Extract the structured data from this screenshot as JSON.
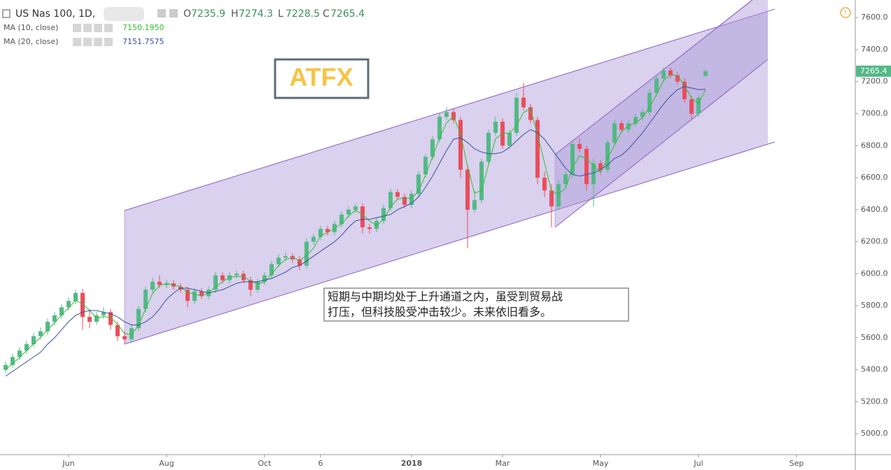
{
  "chart_data": {
    "type": "candlestick",
    "symbol": "US Nas 100, 1D,",
    "ohlc_letters": [
      "O",
      "H",
      "L",
      "C"
    ],
    "watermark": "ATFX",
    "annotation": [
      "短期与中期均处于上升通道之内，虽受到贸易战",
      "打压，但科技股受冲击较少。未来依旧看多。"
    ],
    "categories": [
      null,
      null,
      null,
      null,
      null,
      null,
      null,
      null,
      null,
      "Jun",
      null,
      null,
      null,
      null,
      null,
      null,
      null,
      null,
      null,
      null,
      null,
      null,
      null,
      "Aug",
      null,
      null,
      null,
      null,
      null,
      null,
      null,
      null,
      null,
      null,
      null,
      null,
      null,
      "Oct",
      null,
      null,
      null,
      null,
      null,
      null,
      null,
      "6",
      null,
      null,
      null,
      null,
      null,
      null,
      null,
      null,
      null,
      null,
      null,
      null,
      "2018",
      null,
      null,
      null,
      null,
      null,
      null,
      null,
      null,
      null,
      null,
      null,
      null,
      "Mar",
      null,
      null,
      null,
      null,
      null,
      null,
      null,
      null,
      null,
      null,
      null,
      null,
      null,
      "May",
      null,
      null,
      null,
      null,
      null,
      null,
      null,
      null,
      null,
      null,
      null,
      null,
      null,
      "Jul",
      null,
      null,
      null,
      null,
      null,
      null,
      null,
      null,
      null,
      null,
      null,
      null,
      null,
      "Sep",
      null,
      null,
      null,
      null,
      null,
      null,
      null,
      null
    ],
    "candles": {
      "up_color": "#53b987",
      "down_color": "#eb4d5c",
      "open": [
        5400,
        5430,
        5480,
        5520,
        5560,
        5610,
        5640,
        5700,
        5740,
        5790,
        5830,
        5880,
        5730,
        5700,
        5740,
        5760,
        5680,
        5610,
        5590,
        5660,
        5780,
        5900,
        5950,
        5930,
        5940,
        5920,
        5900,
        5830,
        5890,
        5860,
        5900,
        5990,
        5960,
        5990,
        6000,
        5960,
        5900,
        5950,
        5990,
        6060,
        6100,
        6110,
        6090,
        6050,
        6200,
        6230,
        6280,
        6260,
        6310,
        6370,
        6400,
        6420,
        6290,
        6280,
        6330,
        6410,
        6510,
        6480,
        6430,
        6500,
        6620,
        6730,
        6840,
        6980,
        7010,
        6960,
        6650,
        6400,
        6460,
        6700,
        6880,
        6950,
        6800,
        6880,
        7100,
        7040,
        6960,
        6600,
        6520,
        6420,
        6560,
        6620,
        6810,
        6780,
        6560,
        6690,
        6650,
        6820,
        6940,
        6900,
        6940,
        6980,
        7010,
        7130,
        7220,
        7270,
        7240,
        7200,
        7090,
        7000,
        7235.9,
        null,
        null,
        null,
        null,
        null,
        null,
        null,
        null,
        null,
        null,
        null,
        null,
        null,
        null,
        null,
        null,
        null,
        null,
        null,
        null,
        null
      ],
      "high": [
        5450,
        5500,
        5540,
        5580,
        5630,
        5665,
        5720,
        5760,
        5810,
        5850,
        5900,
        5905,
        5780,
        5760,
        5790,
        5780,
        5700,
        5640,
        5680,
        5800,
        5920,
        5975,
        5990,
        5960,
        5960,
        5940,
        5920,
        5910,
        5910,
        5920,
        6010,
        6010,
        6010,
        6020,
        6020,
        5980,
        5970,
        6010,
        6080,
        6120,
        6130,
        6130,
        6110,
        6220,
        6250,
        6300,
        6300,
        6330,
        6390,
        6420,
        6440,
        6440,
        6310,
        6350,
        6430,
        6530,
        6530,
        6500,
        6520,
        6640,
        6750,
        6860,
        7000,
        7040,
        7030,
        6980,
        6680,
        6520,
        6720,
        6900,
        6980,
        6970,
        6900,
        7130,
        7190,
        7060,
        6980,
        6640,
        6560,
        6590,
        6640,
        6830,
        6850,
        6800,
        6720,
        6710,
        6840,
        6960,
        6960,
        6960,
        7000,
        7030,
        7150,
        7240,
        7290,
        7290,
        7260,
        7220,
        7110,
        7120,
        7274.3,
        null,
        null,
        null,
        null,
        null,
        null,
        null,
        null,
        null,
        null,
        null,
        null,
        null,
        null,
        null,
        null,
        null,
        null,
        null,
        null,
        null
      ],
      "low": [
        5380,
        5410,
        5460,
        5500,
        5540,
        5590,
        5620,
        5680,
        5720,
        5770,
        5810,
        5650,
        5660,
        5680,
        5720,
        5650,
        5580,
        5560,
        5570,
        5640,
        5760,
        5880,
        5910,
        5910,
        5900,
        5880,
        5790,
        5810,
        5840,
        5840,
        5880,
        5940,
        5940,
        5970,
        5940,
        5860,
        5880,
        5930,
        5970,
        6040,
        6080,
        6070,
        6020,
        6030,
        6180,
        6210,
        6240,
        6240,
        6290,
        6350,
        6380,
        6250,
        6250,
        6260,
        6310,
        6390,
        6460,
        6410,
        6410,
        6480,
        6600,
        6710,
        6820,
        6960,
        6940,
        6600,
        6160,
        6380,
        6440,
        6680,
        6860,
        6780,
        6780,
        6860,
        7020,
        6940,
        6560,
        6480,
        6290,
        6400,
        6540,
        6600,
        6760,
        6520,
        6420,
        6620,
        6630,
        6800,
        6880,
        6880,
        6920,
        6960,
        6990,
        7110,
        7200,
        7220,
        7180,
        7070,
        6960,
        6980,
        7228.5,
        null,
        null,
        null,
        null,
        null,
        null,
        null,
        null,
        null,
        null,
        null,
        null,
        null,
        null,
        null,
        null,
        null,
        null,
        null,
        null,
        null
      ],
      "close": [
        5430,
        5480,
        5520,
        5560,
        5610,
        5640,
        5700,
        5740,
        5790,
        5830,
        5880,
        5730,
        5700,
        5740,
        5760,
        5680,
        5610,
        5590,
        5660,
        5780,
        5900,
        5950,
        5930,
        5940,
        5920,
        5900,
        5830,
        5890,
        5860,
        5900,
        5990,
        5960,
        5990,
        6000,
        5960,
        5900,
        5950,
        5990,
        6060,
        6100,
        6110,
        6090,
        6050,
        6200,
        6230,
        6280,
        6260,
        6310,
        6370,
        6400,
        6420,
        6290,
        6280,
        6330,
        6410,
        6510,
        6480,
        6430,
        6500,
        6620,
        6730,
        6840,
        6980,
        7010,
        6960,
        6650,
        6400,
        6460,
        6700,
        6880,
        6950,
        6800,
        6880,
        7100,
        7040,
        6960,
        6600,
        6520,
        6420,
        6560,
        6620,
        6810,
        6780,
        6560,
        6690,
        6650,
        6820,
        6940,
        6900,
        6940,
        6980,
        7010,
        7130,
        7220,
        7270,
        7240,
        7200,
        7090,
        7000,
        7100,
        7265.4,
        null,
        null,
        null,
        null,
        null,
        null,
        null,
        null,
        null,
        null,
        null,
        null,
        null,
        null,
        null,
        null,
        null,
        null,
        null,
        null,
        null
      ]
    },
    "series": [
      {
        "name": "MA (10, close)",
        "color": "#2fbf2f",
        "last_label": "7150.1950",
        "values": [
          5400,
          5440,
          5477,
          5520,
          5563,
          5603,
          5650,
          5693,
          5743,
          5787,
          5833,
          5813,
          5770,
          5723,
          5733,
          5727,
          5683,
          5627,
          5620,
          5677,
          5780,
          5877,
          5927,
          5940,
          5930,
          5920,
          5883,
          5873,
          5860,
          5883,
          5917,
          5950,
          5980,
          5983,
          5983,
          5953,
          5937,
          5947,
          6000,
          6050,
          6090,
          6100,
          6083,
          6113,
          6160,
          6237,
          6257,
          6283,
          6313,
          6360,
          6397,
          6370,
          6330,
          6300,
          6340,
          6417,
          6467,
          6473,
          6470,
          6517,
          6617,
          6730,
          6850,
          6943,
          6983,
          6873,
          6670,
          6503,
          6520,
          6680,
          6843,
          6877,
          6877,
          6927,
          7007,
          7033,
          6867,
          6693,
          6513,
          6500,
          6533,
          6663,
          6737,
          6717,
          6677,
          6633,
          6720,
          6803,
          6887,
          6927,
          6940,
          6977,
          7040,
          7120,
          7207,
          7243,
          7237,
          7177,
          7097,
          7063,
          7150.195,
          null,
          null,
          null,
          null,
          null,
          null,
          null,
          null,
          null,
          null,
          null,
          null,
          null,
          null,
          null,
          null,
          null,
          null,
          null,
          null,
          null
        ]
      },
      {
        "name": "MA (20, close)",
        "color": "#3a4fa0",
        "last_label": "7151.7575",
        "values": [
          5360,
          5390,
          5420,
          5450,
          5480,
          5510,
          5560,
          5600,
          5650,
          5700,
          5740,
          5760,
          5770,
          5770,
          5760,
          5750,
          5730,
          5700,
          5680,
          5680,
          5700,
          5730,
          5780,
          5840,
          5880,
          5910,
          5910,
          5900,
          5890,
          5880,
          5890,
          5900,
          5920,
          5940,
          5950,
          5950,
          5950,
          5960,
          5970,
          5990,
          6010,
          6040,
          6050,
          6080,
          6110,
          6140,
          6170,
          6200,
          6240,
          6290,
          6330,
          6340,
          6340,
          6350,
          6360,
          6370,
          6400,
          6420,
          6440,
          6480,
          6540,
          6610,
          6690,
          6770,
          6840,
          6850,
          6820,
          6780,
          6760,
          6750,
          6750,
          6760,
          6790,
          6830,
          6870,
          6900,
          6880,
          6840,
          6780,
          6720,
          6660,
          6620,
          6610,
          6620,
          6630,
          6650,
          6680,
          6720,
          6740,
          6780,
          6830,
          6880,
          6940,
          7000,
          7060,
          7110,
          7150,
          7170,
          7160,
          7150,
          7151.7575,
          null,
          null,
          null,
          null,
          null,
          null,
          null,
          null,
          null,
          null,
          null,
          null,
          null,
          null,
          null,
          null,
          null,
          null,
          null,
          null,
          null
        ]
      }
    ],
    "ylim": [
      4870,
      7710
    ],
    "yticks": [
      {
        "value": 5000,
        "label": "5000.0"
      },
      {
        "value": 5200,
        "label": "5200.0"
      },
      {
        "value": 5400,
        "label": "5400.0"
      },
      {
        "value": 5600,
        "label": "5600.0"
      },
      {
        "value": 5800,
        "label": "5800.0"
      },
      {
        "value": 6000,
        "label": "6000.0"
      },
      {
        "value": 6200,
        "label": "6200.0"
      },
      {
        "value": 6400,
        "label": "6400.0"
      },
      {
        "value": 6600,
        "label": "6600.0"
      },
      {
        "value": 6800,
        "label": "6800.0"
      },
      {
        "value": 7000,
        "label": "7000.0"
      },
      {
        "value": 7200,
        "label": "7200.0"
      },
      {
        "value": 7400,
        "label": "7400.0"
      },
      {
        "value": 7600,
        "label": "7600.0"
      }
    ]
  }
}
